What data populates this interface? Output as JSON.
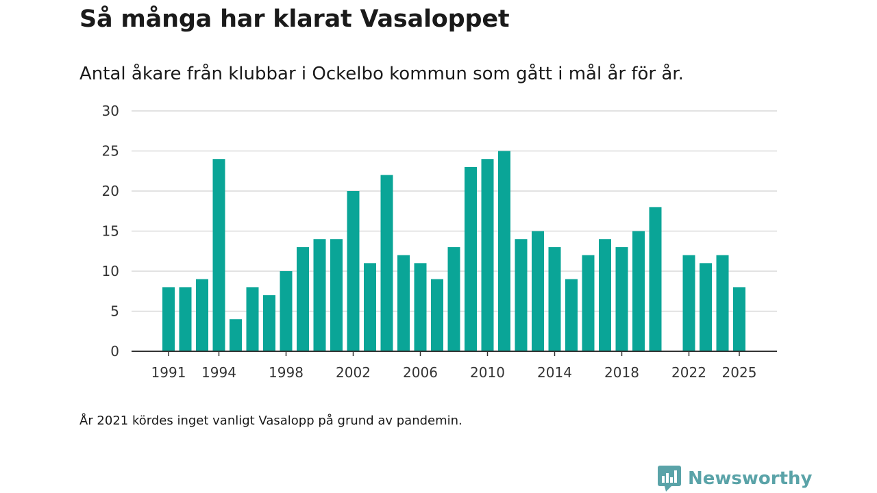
{
  "header": {
    "title": "Så många har klarat Vasaloppet",
    "subtitle": "Antal åkare från klubbar i Ockelbo kommun som gått i mål år för år."
  },
  "footnote": "År 2021 kördes inget vanligt Vasalopp på grund av pandemin.",
  "brand": {
    "name": "Newsworthy",
    "icon": "newsworthy-logo-icon",
    "color": "#5aa3a8"
  },
  "colors": {
    "bar": "#0aa597",
    "grid": "#d9d9d9",
    "axis": "#333333"
  },
  "chart_data": {
    "type": "bar",
    "title": "Så många har klarat Vasaloppet",
    "xlabel": "",
    "ylabel": "",
    "ylim": [
      0,
      30
    ],
    "yticks": [
      0,
      5,
      10,
      15,
      20,
      25,
      30
    ],
    "xticks": [
      "1991",
      "1994",
      "1998",
      "2002",
      "2006",
      "2010",
      "2014",
      "2018",
      "2022",
      "2025"
    ],
    "grid": true,
    "categories": [
      "1991",
      "1992",
      "1993",
      "1994",
      "1995",
      "1996",
      "1997",
      "1998",
      "1999",
      "2000",
      "2001",
      "2002",
      "2003",
      "2004",
      "2005",
      "2006",
      "2007",
      "2008",
      "2009",
      "2010",
      "2011",
      "2012",
      "2013",
      "2014",
      "2015",
      "2016",
      "2017",
      "2018",
      "2019",
      "2020",
      "2021",
      "2022",
      "2023",
      "2024",
      "2025"
    ],
    "values": [
      8,
      8,
      9,
      24,
      4,
      8,
      7,
      10,
      13,
      14,
      14,
      20,
      11,
      22,
      12,
      11,
      9,
      13,
      23,
      24,
      25,
      14,
      15,
      13,
      9,
      12,
      14,
      13,
      15,
      18,
      null,
      12,
      11,
      12,
      8
    ]
  }
}
